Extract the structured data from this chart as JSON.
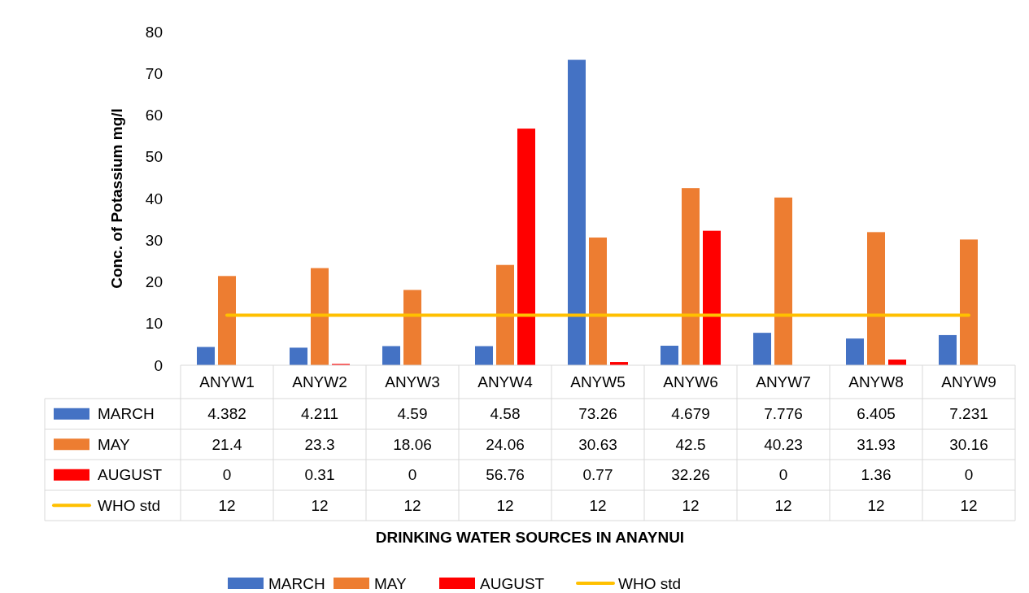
{
  "chart_data": {
    "type": "bar",
    "annotations": [
      "DRINKING WATER SOURCES IN ANAYNUI"
    ],
    "ylabel": "Conc. of Potassium mg/l",
    "categories": [
      "ANYW1",
      "ANYW2",
      "ANYW3",
      "ANYW4",
      "ANYW5",
      "ANYW6",
      "ANYW7",
      "ANYW8",
      "ANYW9"
    ],
    "series": [
      {
        "name": "MARCH",
        "color": "#4472c4",
        "values": [
          4.382,
          4.211,
          4.59,
          4.58,
          73.26,
          4.679,
          7.776,
          6.405,
          7.231
        ]
      },
      {
        "name": "MAY",
        "color": "#ed7d31",
        "values": [
          21.4,
          23.3,
          18.06,
          24.06,
          30.63,
          42.5,
          40.23,
          31.93,
          30.16
        ]
      },
      {
        "name": "AUGUST",
        "color": "#ff0000",
        "values": [
          0,
          0.31,
          0,
          56.76,
          0.77,
          32.26,
          0,
          1.36,
          0
        ]
      },
      {
        "name": "WHO std",
        "type": "line",
        "color": "#ffc000",
        "values": [
          12,
          12,
          12,
          12,
          12,
          12,
          12,
          12,
          12
        ]
      }
    ],
    "ylim": [
      0,
      80
    ],
    "yticks": [
      0,
      10,
      20,
      30,
      40,
      50,
      60,
      70,
      80
    ],
    "grid": false,
    "legend": "bottom",
    "data_labels": true,
    "marker": "none",
    "line_style": "solid"
  }
}
